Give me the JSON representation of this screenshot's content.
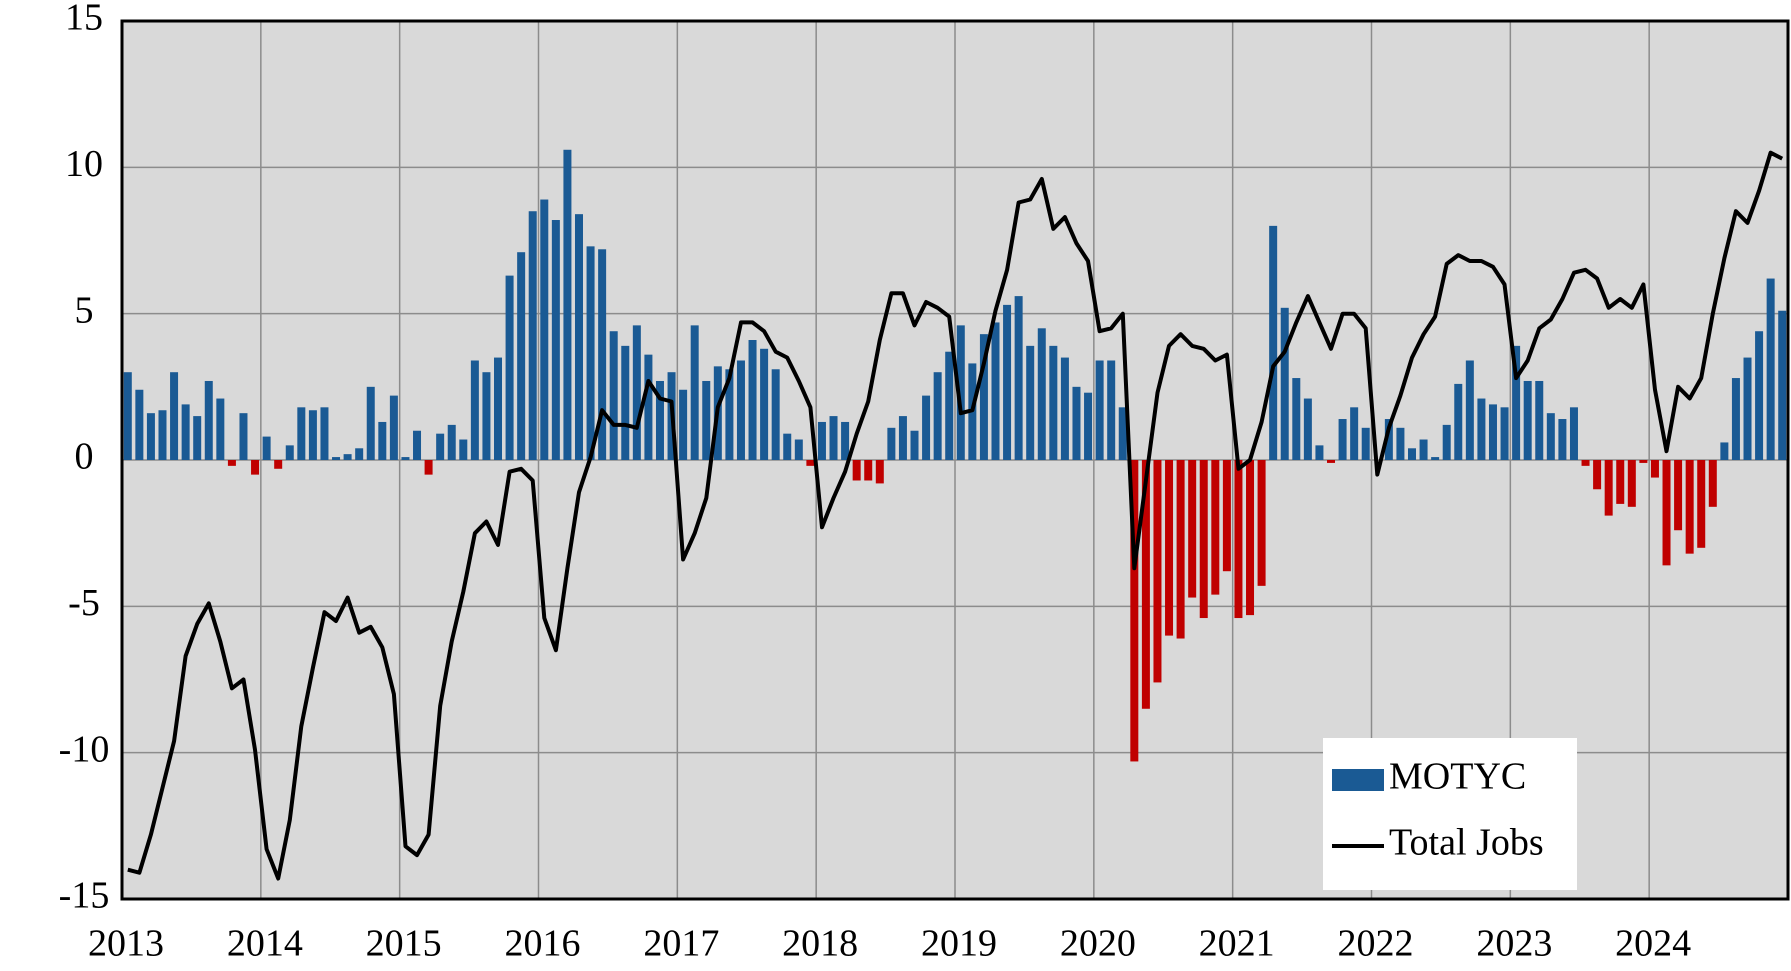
{
  "chart_data": {
    "type": "bar_line",
    "xlim": [
      2013,
      2025
    ],
    "xticks": [
      2013,
      2014,
      2015,
      2016,
      2017,
      2018,
      2019,
      2020,
      2021,
      2022,
      2023,
      2024
    ],
    "ylim": [
      -15,
      15
    ],
    "yticks": [
      -15,
      -10,
      -5,
      0,
      5,
      10,
      15
    ],
    "grid": true,
    "legend": "lower right",
    "series": [
      {
        "name": "MOTYC",
        "type": "bar",
        "color": "#1a5a94",
        "negative_color": "#c00000",
        "values": [
          3.0,
          2.4,
          1.6,
          1.7,
          3.0,
          1.9,
          1.5,
          2.7,
          2.1,
          -0.2,
          1.6,
          -0.5,
          0.8,
          -0.3,
          0.5,
          1.8,
          1.7,
          1.8,
          0.1,
          0.2,
          0.4,
          2.5,
          1.3,
          2.2,
          0.1,
          1.0,
          -0.5,
          0.9,
          1.2,
          0.7,
          3.4,
          3.0,
          3.5,
          6.3,
          7.1,
          8.5,
          8.9,
          8.2,
          10.6,
          8.4,
          7.3,
          7.2,
          4.4,
          3.9,
          4.6,
          3.6,
          2.7,
          3.0,
          2.4,
          4.6,
          2.7,
          3.2,
          3.1,
          3.4,
          4.1,
          3.8,
          3.1,
          0.9,
          0.7,
          -0.2,
          1.3,
          1.5,
          1.3,
          -0.7,
          -0.7,
          -0.8,
          1.1,
          1.5,
          1.0,
          2.2,
          3.0,
          3.7,
          4.6,
          3.3,
          4.3,
          4.7,
          5.3,
          5.6,
          3.9,
          4.5,
          3.9,
          3.5,
          2.5,
          2.3,
          3.4,
          3.4,
          1.8,
          -10.3,
          -8.5,
          -7.6,
          -6.0,
          -6.1,
          -4.7,
          -5.4,
          -4.6,
          -3.8,
          -5.4,
          -5.3,
          -4.3,
          8.0,
          5.2,
          2.8,
          2.1,
          0.5,
          -0.1,
          1.4,
          1.8,
          1.1,
          0.0,
          1.4,
          1.1,
          0.4,
          0.7,
          0.1,
          1.2,
          2.6,
          3.4,
          2.1,
          1.9,
          1.8,
          3.9,
          2.7,
          2.7,
          1.6,
          1.4,
          1.8,
          -0.2,
          -1.0,
          -1.9,
          -1.5,
          -1.6,
          -0.1,
          -0.6,
          -3.6,
          -2.4,
          -3.2,
          -3.0,
          -1.6,
          0.6,
          2.8,
          3.5,
          4.4,
          6.2,
          5.1
        ]
      },
      {
        "name": "Total Jobs",
        "type": "line",
        "color": "#000000",
        "values": [
          -14.0,
          -14.1,
          -12.8,
          -11.2,
          -9.6,
          -6.7,
          -5.6,
          -4.9,
          -6.2,
          -7.8,
          -7.5,
          -9.9,
          -13.3,
          -14.3,
          -12.3,
          -9.1,
          -7.1,
          -5.2,
          -5.5,
          -4.7,
          -5.9,
          -5.7,
          -6.4,
          -8.0,
          -13.2,
          -13.5,
          -12.8,
          -8.4,
          -6.2,
          -4.5,
          -2.5,
          -2.1,
          -2.9,
          -0.4,
          -0.3,
          -0.7,
          -5.4,
          -6.5,
          -3.7,
          -1.1,
          0.1,
          1.7,
          1.2,
          1.2,
          1.1,
          2.7,
          2.1,
          2.0,
          -3.4,
          -2.5,
          -1.3,
          1.8,
          2.8,
          4.7,
          4.7,
          4.4,
          3.7,
          3.5,
          2.7,
          1.8,
          -2.3,
          -1.3,
          -0.4,
          0.9,
          2.0,
          4.1,
          5.7,
          5.7,
          4.6,
          5.4,
          5.2,
          4.9,
          1.6,
          1.7,
          3.3,
          5.1,
          6.5,
          8.8,
          8.9,
          9.6,
          7.9,
          8.3,
          7.4,
          6.8,
          4.4,
          4.5,
          5.0,
          -3.7,
          -0.7,
          2.3,
          3.9,
          4.3,
          3.9,
          3.8,
          3.4,
          3.6,
          -0.3,
          0.0,
          1.3,
          3.2,
          3.7,
          4.7,
          5.6,
          4.7,
          3.8,
          5.0,
          5.0,
          4.5,
          -0.5,
          1.1,
          2.2,
          3.5,
          4.3,
          4.9,
          6.7,
          7.0,
          6.8,
          6.8,
          6.6,
          6.0,
          2.8,
          3.4,
          4.5,
          4.8,
          5.5,
          6.4,
          6.5,
          6.2,
          5.2,
          5.5,
          5.2,
          6.0,
          2.4,
          0.3,
          2.5,
          2.1,
          2.8,
          5.0,
          6.9,
          8.5,
          8.1,
          9.2,
          10.5,
          10.3
        ]
      }
    ]
  }
}
